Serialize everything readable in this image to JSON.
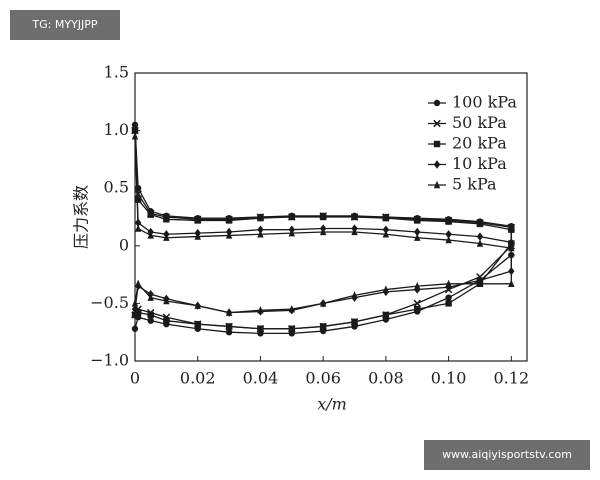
{
  "chart_data": {
    "type": "line",
    "xlabel": "x/m",
    "ylabel": "压力系数",
    "x": [
      0,
      0.001,
      0.005,
      0.01,
      0.02,
      0.03,
      0.04,
      0.05,
      0.06,
      0.07,
      0.08,
      0.09,
      0.1,
      0.11,
      0.12,
      0.12,
      0.11,
      0.1,
      0.09,
      0.08,
      0.07,
      0.06,
      0.05,
      0.04,
      0.03,
      0.02,
      0.01,
      0.005,
      0.001,
      0
    ],
    "series": [
      {
        "name": "100 kPa",
        "color": "#1a1a1a",
        "marker": "circle",
        "values": [
          1.05,
          0.5,
          0.3,
          0.26,
          0.24,
          0.24,
          0.25,
          0.26,
          0.26,
          0.26,
          0.25,
          0.24,
          0.23,
          0.21,
          0.17,
          -0.08,
          -0.3,
          -0.45,
          -0.57,
          -0.64,
          -0.7,
          -0.74,
          -0.76,
          -0.76,
          -0.75,
          -0.72,
          -0.68,
          -0.65,
          -0.62,
          -0.72
        ]
      },
      {
        "name": "50 kPa",
        "color": "#1a1a1a",
        "marker": "x",
        "values": [
          1.0,
          0.45,
          0.28,
          0.25,
          0.23,
          0.23,
          0.25,
          0.25,
          0.26,
          0.25,
          0.25,
          0.23,
          0.22,
          0.2,
          0.16,
          0.0,
          -0.27,
          -0.38,
          -0.5,
          -0.6,
          -0.66,
          -0.7,
          -0.72,
          -0.72,
          -0.7,
          -0.68,
          -0.62,
          -0.58,
          -0.55,
          -0.6
        ]
      },
      {
        "name": "20 kPa",
        "color": "#1a1a1a",
        "marker": "square",
        "values": [
          1.0,
          0.4,
          0.27,
          0.23,
          0.22,
          0.22,
          0.24,
          0.25,
          0.25,
          0.25,
          0.24,
          0.22,
          0.21,
          0.19,
          0.14,
          0.02,
          -0.33,
          -0.5,
          -0.55,
          -0.6,
          -0.66,
          -0.7,
          -0.72,
          -0.72,
          -0.7,
          -0.68,
          -0.65,
          -0.6,
          -0.58,
          -0.6
        ]
      },
      {
        "name": "10 kPa",
        "color": "#1a1a1a",
        "marker": "diamond",
        "values": [
          1.0,
          0.2,
          0.12,
          0.1,
          0.11,
          0.12,
          0.14,
          0.14,
          0.15,
          0.15,
          0.14,
          0.12,
          0.1,
          0.08,
          0.03,
          -0.22,
          -0.3,
          -0.36,
          -0.38,
          -0.4,
          -0.45,
          -0.5,
          -0.56,
          -0.57,
          -0.58,
          -0.52,
          -0.46,
          -0.42,
          -0.35,
          -0.55
        ]
      },
      {
        "name": "5 kPa",
        "color": "#1a1a1a",
        "marker": "triangle",
        "values": [
          0.95,
          0.15,
          0.09,
          0.07,
          0.08,
          0.09,
          0.1,
          0.11,
          0.12,
          0.12,
          0.1,
          0.07,
          0.05,
          0.02,
          -0.02,
          -0.33,
          -0.33,
          -0.33,
          -0.35,
          -0.38,
          -0.43,
          -0.5,
          -0.55,
          -0.56,
          -0.58,
          -0.52,
          -0.48,
          -0.45,
          -0.33,
          -0.5
        ]
      }
    ],
    "xlim": [
      0,
      0.125
    ],
    "xticks": [
      0,
      0.02,
      0.04,
      0.06,
      0.08,
      {
        "value": 0.1,
        "label": "0.10"
      },
      0.12
    ],
    "ylim": [
      -1,
      1.5
    ],
    "yticks": [
      {
        "value": -1,
        "label": "−1.0"
      },
      {
        "value": -0.5,
        "label": "−0.5"
      },
      0,
      0.5,
      {
        "value": 1,
        "label": "1.0"
      },
      1.5
    ],
    "grid": false,
    "legend": "upper right"
  },
  "watermarks": [
    "TG: MYYJJPP",
    "www.aiqiyisportstv.com"
  ]
}
